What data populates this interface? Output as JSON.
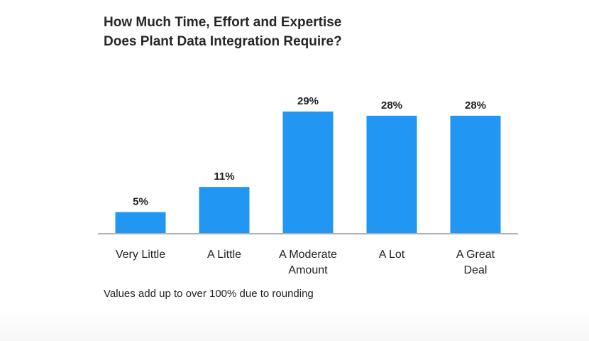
{
  "title_lines": [
    "How Much Time, Effort and Expertise",
    "Does Plant Data Integration Require?"
  ],
  "note": "Values add up to over 100% due to rounding",
  "chart_data": {
    "type": "bar",
    "title": "How Much Time, Effort and Expertise Does Plant Data Integration Require?",
    "categories": [
      "Very Little",
      "A Little",
      "A Moderate Amount",
      "A Lot",
      "A Great Deal"
    ],
    "category_lines": [
      [
        "Very Little"
      ],
      [
        "A Little"
      ],
      [
        "A Moderate",
        "Amount"
      ],
      [
        "A Lot"
      ],
      [
        "A Great",
        "Deal"
      ]
    ],
    "values": [
      5,
      11,
      29,
      28,
      28
    ],
    "value_labels": [
      "5%",
      "11%",
      "29%",
      "28%",
      "28%"
    ],
    "unit": "%",
    "xlabel": "",
    "ylabel": "",
    "ylim": [
      0,
      29
    ],
    "grid": false,
    "legend": "none",
    "bar_color": "#2196f3",
    "axis_color": "#b0b0b0"
  }
}
